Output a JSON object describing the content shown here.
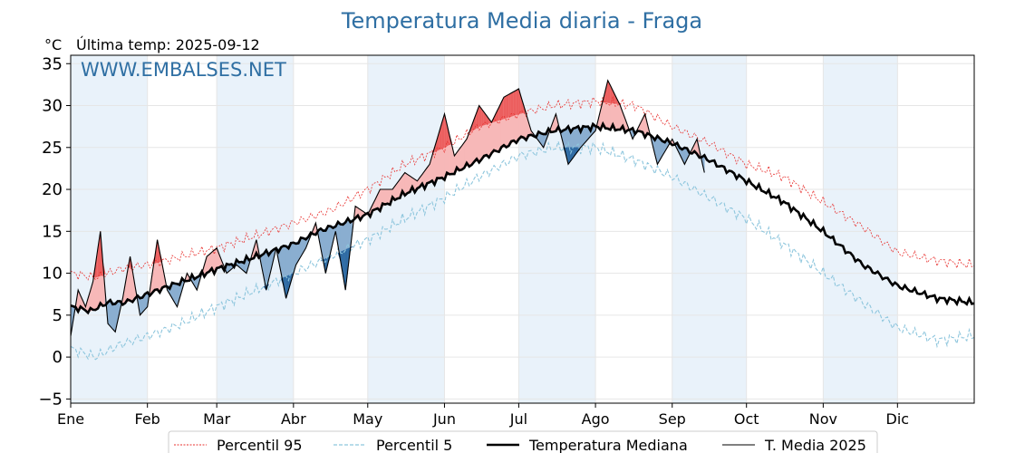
{
  "chart_data": {
    "type": "line",
    "title": "Temperatura Media diaria - Fraga",
    "unit_label": "°C",
    "last_temp_label": "Última temp: 2025-09-12",
    "watermark": "WWW.EMBALSES.NET",
    "ylim": [
      -5.5,
      36
    ],
    "xlim": [
      0,
      365
    ],
    "y_ticks": [
      -5,
      0,
      5,
      10,
      15,
      20,
      25,
      30,
      35
    ],
    "y_tick_labels": [
      "−5",
      "0",
      "5",
      "10",
      "15",
      "20",
      "25",
      "30",
      "35"
    ],
    "month_labels": [
      "Ene",
      "Feb",
      "Mar",
      "Abr",
      "May",
      "Jun",
      "Jul",
      "Ago",
      "Sep",
      "Oct",
      "Nov",
      "Dic"
    ],
    "month_start_days": [
      0,
      31,
      59,
      90,
      120,
      151,
      181,
      212,
      243,
      273,
      304,
      334
    ],
    "grid": true,
    "legend_position": "bottom",
    "colors": {
      "p95": "#e8312f",
      "p5": "#8ec6dd",
      "median": "#000000",
      "current": "#000000",
      "above_fill": "#f7b8b8",
      "above_strong": "#ec5f5f",
      "below_fill": "#8aaed0",
      "below_strong": "#2e6aa3",
      "band": "#e9f2fa",
      "title": "#2f6fa3"
    },
    "legend": [
      {
        "key": "p95",
        "label": "Percentil 95"
      },
      {
        "key": "p5",
        "label": "Percentil 5"
      },
      {
        "key": "median",
        "label": "Temperatura Mediana"
      },
      {
        "key": "current",
        "label": "T. Media 2025"
      }
    ],
    "series": {
      "median": {
        "days": [
          0,
          8,
          15,
          22,
          31,
          40,
          50,
          59,
          70,
          80,
          90,
          100,
          110,
          120,
          135,
          151,
          165,
          181,
          195,
          212,
          228,
          243,
          258,
          273,
          288,
          304,
          320,
          334,
          350,
          364
        ],
        "values": [
          6,
          5.5,
          6.5,
          6.5,
          7.5,
          8.5,
          9.5,
          10.5,
          11.5,
          12.5,
          13.5,
          15,
          16,
          17,
          19.5,
          21.5,
          23.5,
          26,
          27,
          27.5,
          27,
          25.5,
          23.5,
          21,
          18.5,
          15,
          11,
          8.5,
          7,
          6.5
        ]
      },
      "p95": {
        "days": [
          0,
          10,
          20,
          31,
          45,
          59,
          75,
          90,
          105,
          120,
          135,
          151,
          165,
          181,
          195,
          212,
          228,
          243,
          258,
          273,
          288,
          304,
          320,
          334,
          350,
          364
        ],
        "values": [
          10,
          9.5,
          10.5,
          11,
          12,
          13,
          14.5,
          16,
          17.5,
          20,
          23,
          25,
          27.5,
          29,
          30,
          30.5,
          30,
          27.5,
          25.5,
          23,
          21.5,
          18.5,
          15.5,
          12.5,
          11.5,
          11
        ]
      },
      "p5": {
        "days": [
          0,
          10,
          20,
          31,
          45,
          59,
          75,
          90,
          105,
          120,
          135,
          151,
          165,
          181,
          195,
          212,
          228,
          243,
          258,
          273,
          288,
          304,
          320,
          334,
          350,
          364
        ],
        "values": [
          1,
          0,
          1.5,
          2.5,
          4,
          6,
          8,
          10,
          12,
          14,
          16.5,
          19,
          21.5,
          24,
          25,
          25,
          23.5,
          21.5,
          19,
          16.5,
          13.5,
          10,
          6.5,
          3.5,
          2,
          2.5
        ]
      },
      "current": {
        "days": [
          0,
          3,
          6,
          9,
          12,
          15,
          18,
          21,
          24,
          28,
          31,
          35,
          39,
          43,
          47,
          51,
          55,
          59,
          63,
          67,
          71,
          75,
          79,
          83,
          87,
          91,
          95,
          99,
          103,
          107,
          111,
          115,
          120,
          125,
          130,
          135,
          140,
          145,
          151,
          155,
          160,
          165,
          170,
          175,
          181,
          186,
          191,
          196,
          201,
          206,
          212,
          217,
          222,
          227,
          232,
          237,
          243,
          248,
          253,
          256
        ],
        "values": [
          2.5,
          8,
          6,
          9,
          15,
          4,
          3,
          7,
          12,
          5,
          6,
          14,
          8,
          6,
          10,
          8,
          12,
          13,
          10,
          11,
          10,
          14,
          8,
          13,
          7,
          11,
          13,
          16,
          10,
          15,
          8,
          18,
          17,
          20,
          20,
          22,
          21,
          23,
          29,
          24,
          26,
          30,
          28,
          31,
          32,
          27,
          25,
          29,
          23,
          25,
          27,
          33,
          30,
          26,
          29,
          23,
          26,
          23,
          26,
          22
        ]
      }
    }
  }
}
